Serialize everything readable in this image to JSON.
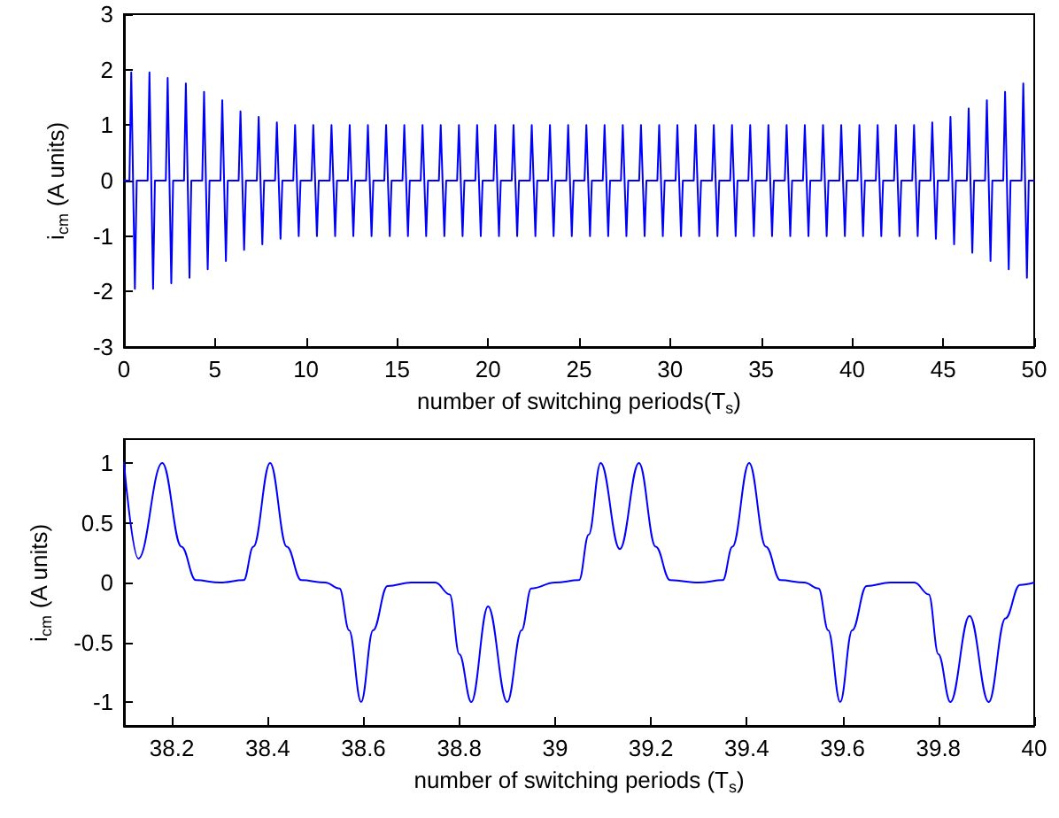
{
  "chart_data": [
    {
      "type": "line",
      "xlabel": "number of switching periods(T$_{s}$)",
      "ylabel": "i$_{cm}$ (A units)",
      "xlim": [
        0,
        50
      ],
      "ylim": [
        -3,
        3
      ],
      "xticks": [
        0,
        5,
        10,
        15,
        20,
        25,
        30,
        35,
        40,
        45,
        50
      ],
      "yticks": [
        -3,
        -2,
        -1,
        0,
        1,
        2,
        3
      ],
      "grid": false,
      "marker": "none",
      "line_style": "solid",
      "series": [
        {
          "color": "#0000ff",
          "x": [
            0,
            0.3,
            0.4,
            0.6,
            0.7,
            1.3,
            1.4,
            1.6,
            1.7,
            2.3,
            2.4,
            2.6,
            2.7,
            3.3,
            3.4,
            3.6,
            3.7,
            4.3,
            4.4,
            4.6,
            4.7,
            5.3,
            5.4,
            5.6,
            5.7,
            6.3,
            6.4,
            6.6,
            6.7,
            7.3,
            7.4,
            7.6,
            7.7,
            8.3,
            8.4,
            8.6,
            8.7,
            9.3,
            9.4,
            9.6,
            9.7,
            10.3,
            10.4,
            10.6,
            10.7,
            11.3,
            11.4,
            11.6,
            11.7,
            12.3,
            12.4,
            12.6,
            12.7,
            13.3,
            13.4,
            13.6,
            13.7,
            14.3,
            14.4,
            14.6,
            14.7,
            15.3,
            15.4,
            15.6,
            15.7,
            16.3,
            16.4,
            16.6,
            16.7,
            17.3,
            17.4,
            17.6,
            17.7,
            18.3,
            18.4,
            18.6,
            18.7,
            19.3,
            19.4,
            19.6,
            19.7,
            20.3,
            20.4,
            20.6,
            20.7,
            21.3,
            21.4,
            21.6,
            21.7,
            22.3,
            22.4,
            22.6,
            22.7,
            23.3,
            23.4,
            23.6,
            23.7,
            24.3,
            24.4,
            24.6,
            24.7,
            25.3,
            25.4,
            25.6,
            25.7,
            26.3,
            26.4,
            26.6,
            26.7,
            27.3,
            27.4,
            27.6,
            27.7,
            28.3,
            28.4,
            28.6,
            28.7,
            29.3,
            29.4,
            29.6,
            29.7,
            30.3,
            30.4,
            30.6,
            30.7,
            31.3,
            31.4,
            31.6,
            31.7,
            32.3,
            32.4,
            32.6,
            32.7,
            33.3,
            33.4,
            33.6,
            33.7,
            34.3,
            34.4,
            34.6,
            34.7,
            35.3,
            35.4,
            35.6,
            35.7,
            36.3,
            36.4,
            36.6,
            36.7,
            37.3,
            37.4,
            37.6,
            37.7,
            38.3,
            38.4,
            38.6,
            38.7,
            39.3,
            39.4,
            39.6,
            39.7,
            40.3,
            40.4,
            40.6,
            40.7,
            41.3,
            41.4,
            41.6,
            41.7,
            42.3,
            42.4,
            42.6,
            42.7,
            43.3,
            43.4,
            43.6,
            43.7,
            44.3,
            44.4,
            44.6,
            44.7,
            45.3,
            45.4,
            45.6,
            45.7,
            46.3,
            46.4,
            46.6,
            46.7,
            47.3,
            47.4,
            47.6,
            47.7,
            48.3,
            48.4,
            48.6,
            48.7,
            49.3,
            49.4,
            49.6,
            49.7,
            50
          ],
          "values": [
            0,
            0,
            1.95,
            -1.95,
            0,
            0,
            1.95,
            -1.95,
            0,
            0,
            1.85,
            -1.85,
            0,
            0,
            1.75,
            -1.75,
            0,
            0,
            1.6,
            -1.6,
            0,
            0,
            1.45,
            -1.45,
            0,
            0,
            1.25,
            -1.25,
            0,
            0,
            1.15,
            -1.15,
            0,
            0,
            1.05,
            -1.05,
            0,
            0,
            1,
            -1,
            0,
            0,
            1,
            -1,
            0,
            0,
            1,
            -1,
            0,
            0,
            1,
            -1,
            0,
            0,
            1,
            -1,
            0,
            0,
            1,
            -1,
            0,
            0,
            1,
            -1,
            0,
            0,
            1,
            -1,
            0,
            0,
            1,
            -1,
            0,
            0,
            1,
            -1,
            0,
            0,
            1,
            -1,
            0,
            0,
            1,
            -1,
            0,
            0,
            1,
            -1,
            0,
            0,
            1,
            -1,
            0,
            0,
            1,
            -1,
            0,
            0,
            1,
            -1,
            0,
            0,
            1,
            -1,
            0,
            0,
            1,
            -1,
            0,
            0,
            1,
            -1,
            0,
            0,
            1,
            -1,
            0,
            0,
            1,
            -1,
            0,
            0,
            1,
            -1,
            0,
            0,
            1,
            -1,
            0,
            0,
            1,
            -1,
            0,
            0,
            1,
            -1,
            0,
            0,
            1,
            -1,
            0,
            0,
            1,
            -1,
            0,
            0,
            1,
            -1,
            0,
            0,
            1,
            -1,
            0,
            0,
            1,
            -1,
            0,
            0,
            1,
            -1,
            0,
            0,
            1,
            -1,
            0,
            0,
            1,
            -1,
            0,
            0,
            1,
            -1,
            0,
            0,
            1,
            -1,
            0,
            0,
            1.05,
            -1.05,
            0,
            0,
            1.15,
            -1.15,
            0,
            0,
            1.3,
            -1.3,
            0,
            0,
            1.45,
            -1.45,
            0,
            0,
            1.6,
            -1.6,
            0,
            0,
            1.75,
            -1.75,
            0,
            0
          ]
        }
      ]
    },
    {
      "type": "line",
      "xlabel": "number of switching periods (T$_{s}$)",
      "ylabel": "i$_{cm}$ (A units)",
      "xlim": [
        38.1,
        40
      ],
      "ylim": [
        -1.2,
        1.2
      ],
      "xticks": [
        38.2,
        38.4,
        38.6,
        38.8,
        39,
        39.2,
        39.4,
        39.6,
        39.8,
        40
      ],
      "yticks": [
        -1,
        -0.5,
        0,
        0.5,
        1
      ],
      "grid": false,
      "marker": "none",
      "line_style": "solid",
      "series": [
        {
          "color": "#0000ff",
          "x": [
            38.1,
            38.13,
            38.18,
            38.22,
            38.25,
            38.3,
            38.35,
            38.37,
            38.405,
            38.44,
            38.47,
            38.52,
            38.55,
            38.57,
            38.595,
            38.62,
            38.65,
            38.7,
            38.75,
            38.78,
            38.8,
            38.825,
            38.86,
            38.9,
            38.93,
            38.95,
            39,
            39.05,
            39.07,
            39.095,
            39.135,
            39.175,
            39.21,
            39.24,
            39.3,
            39.35,
            39.37,
            39.405,
            39.44,
            39.47,
            39.52,
            39.55,
            39.57,
            39.595,
            39.62,
            39.65,
            39.7,
            39.75,
            39.78,
            39.8,
            39.825,
            39.865,
            39.905,
            39.94,
            39.97,
            40
          ],
          "values": [
            1,
            0.2,
            1,
            0.3,
            0.02,
            0,
            0.02,
            0.3,
            1,
            0.3,
            0.02,
            0,
            -0.05,
            -0.4,
            -1,
            -0.4,
            -0.03,
            0,
            0,
            -0.1,
            -0.6,
            -1,
            -0.2,
            -1,
            -0.4,
            -0.05,
            0,
            0.02,
            0.4,
            1,
            0.28,
            1,
            0.3,
            0.02,
            0,
            0.02,
            0.3,
            1,
            0.3,
            0.02,
            0,
            -0.05,
            -0.4,
            -1,
            -0.4,
            -0.03,
            0,
            0,
            -0.1,
            -0.6,
            -1,
            -0.28,
            -1,
            -0.3,
            -0.02,
            0
          ]
        }
      ]
    }
  ]
}
